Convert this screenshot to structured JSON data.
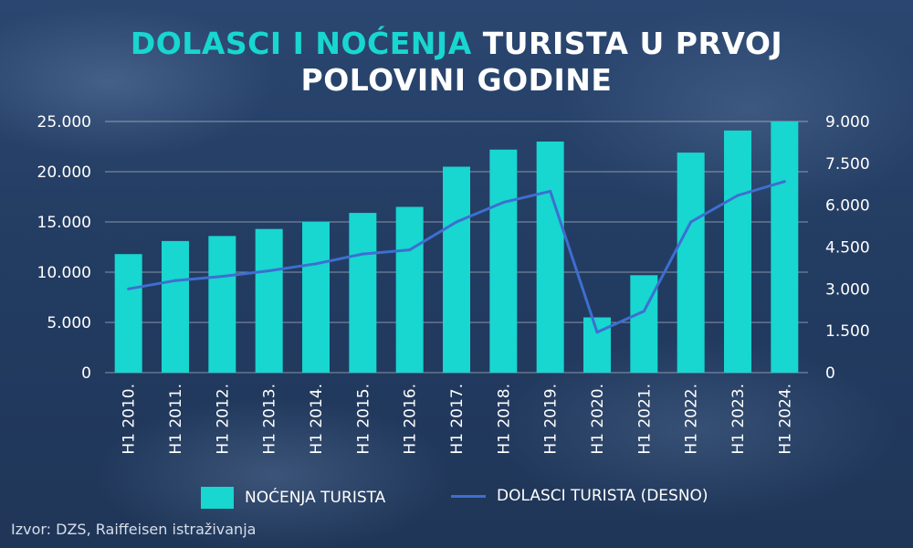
{
  "title": {
    "accent": "DOLASCI I NOĆENJA",
    "rest_line1": " TURISTA U PRVOJ",
    "line2": "POLOVINI GODINE"
  },
  "chart_data": {
    "type": "bar",
    "categories": [
      "H1 2010.",
      "H1 2011.",
      "H1 2012.",
      "H1 2013.",
      "H1 2014.",
      "H1 2015.",
      "H1 2016.",
      "H1 2017.",
      "H1 2018.",
      "H1 2019.",
      "H1 2020.",
      "H1 2021.",
      "H1 2022.",
      "H1 2023.",
      "H1 2024."
    ],
    "series": [
      {
        "name": "NOĆENJA TURISTA",
        "kind": "bar",
        "axis": "left",
        "color": "#18d6d0",
        "values": [
          11800,
          13100,
          13600,
          14300,
          15000,
          15900,
          16500,
          20500,
          22200,
          23000,
          5500,
          9700,
          21900,
          24100,
          25000
        ]
      },
      {
        "name": "DOLASCI TURISTA (DESNO)",
        "kind": "line",
        "axis": "right",
        "color": "#3d6fd0",
        "values": [
          3000,
          3300,
          3450,
          3650,
          3900,
          4250,
          4400,
          5400,
          6100,
          6500,
          1450,
          2200,
          5400,
          6350,
          6850
        ]
      }
    ],
    "y_left": {
      "min": 0,
      "max": 25000,
      "ticks": [
        "0",
        "5.000",
        "10.000",
        "15.000",
        "20.000",
        "25.000"
      ]
    },
    "y_right": {
      "min": 0,
      "max": 9000,
      "ticks": [
        "0",
        "1.500",
        "3.000",
        "4.500",
        "6.000",
        "7.500",
        "9.000"
      ]
    },
    "grid": true,
    "legend_position": "bottom"
  },
  "legend": {
    "bars_label": "NOĆENJA TURISTA",
    "line_label": "DOLASCI TURISTA (DESNO)"
  },
  "source": "Izvor: DZS, Raiffeisen istraživanja"
}
